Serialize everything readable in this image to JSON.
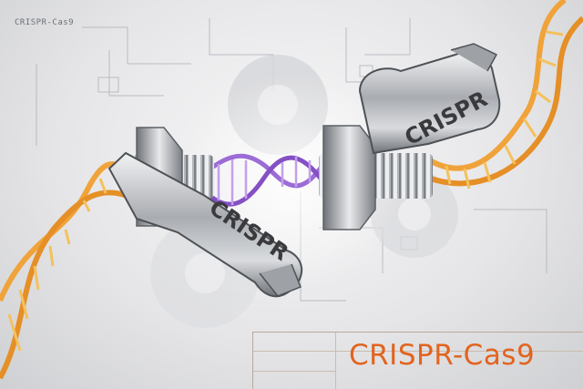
{
  "corner_label": "CRISPR-Cas9",
  "title": "CRISPR-Cas9",
  "wrench_left_label": "CRISPR",
  "wrench_right_label": "CRISPR",
  "icons": [
    "gear-icon",
    "dna-helix-icon",
    "wrench-icon",
    "bolt-icon"
  ],
  "colors": {
    "dna_outer": "#f0a33a",
    "dna_rungs": "#f4c15d",
    "dna_edited": "#9b6bd6",
    "title": "#e2641f",
    "metal": "#b9bcc0"
  }
}
